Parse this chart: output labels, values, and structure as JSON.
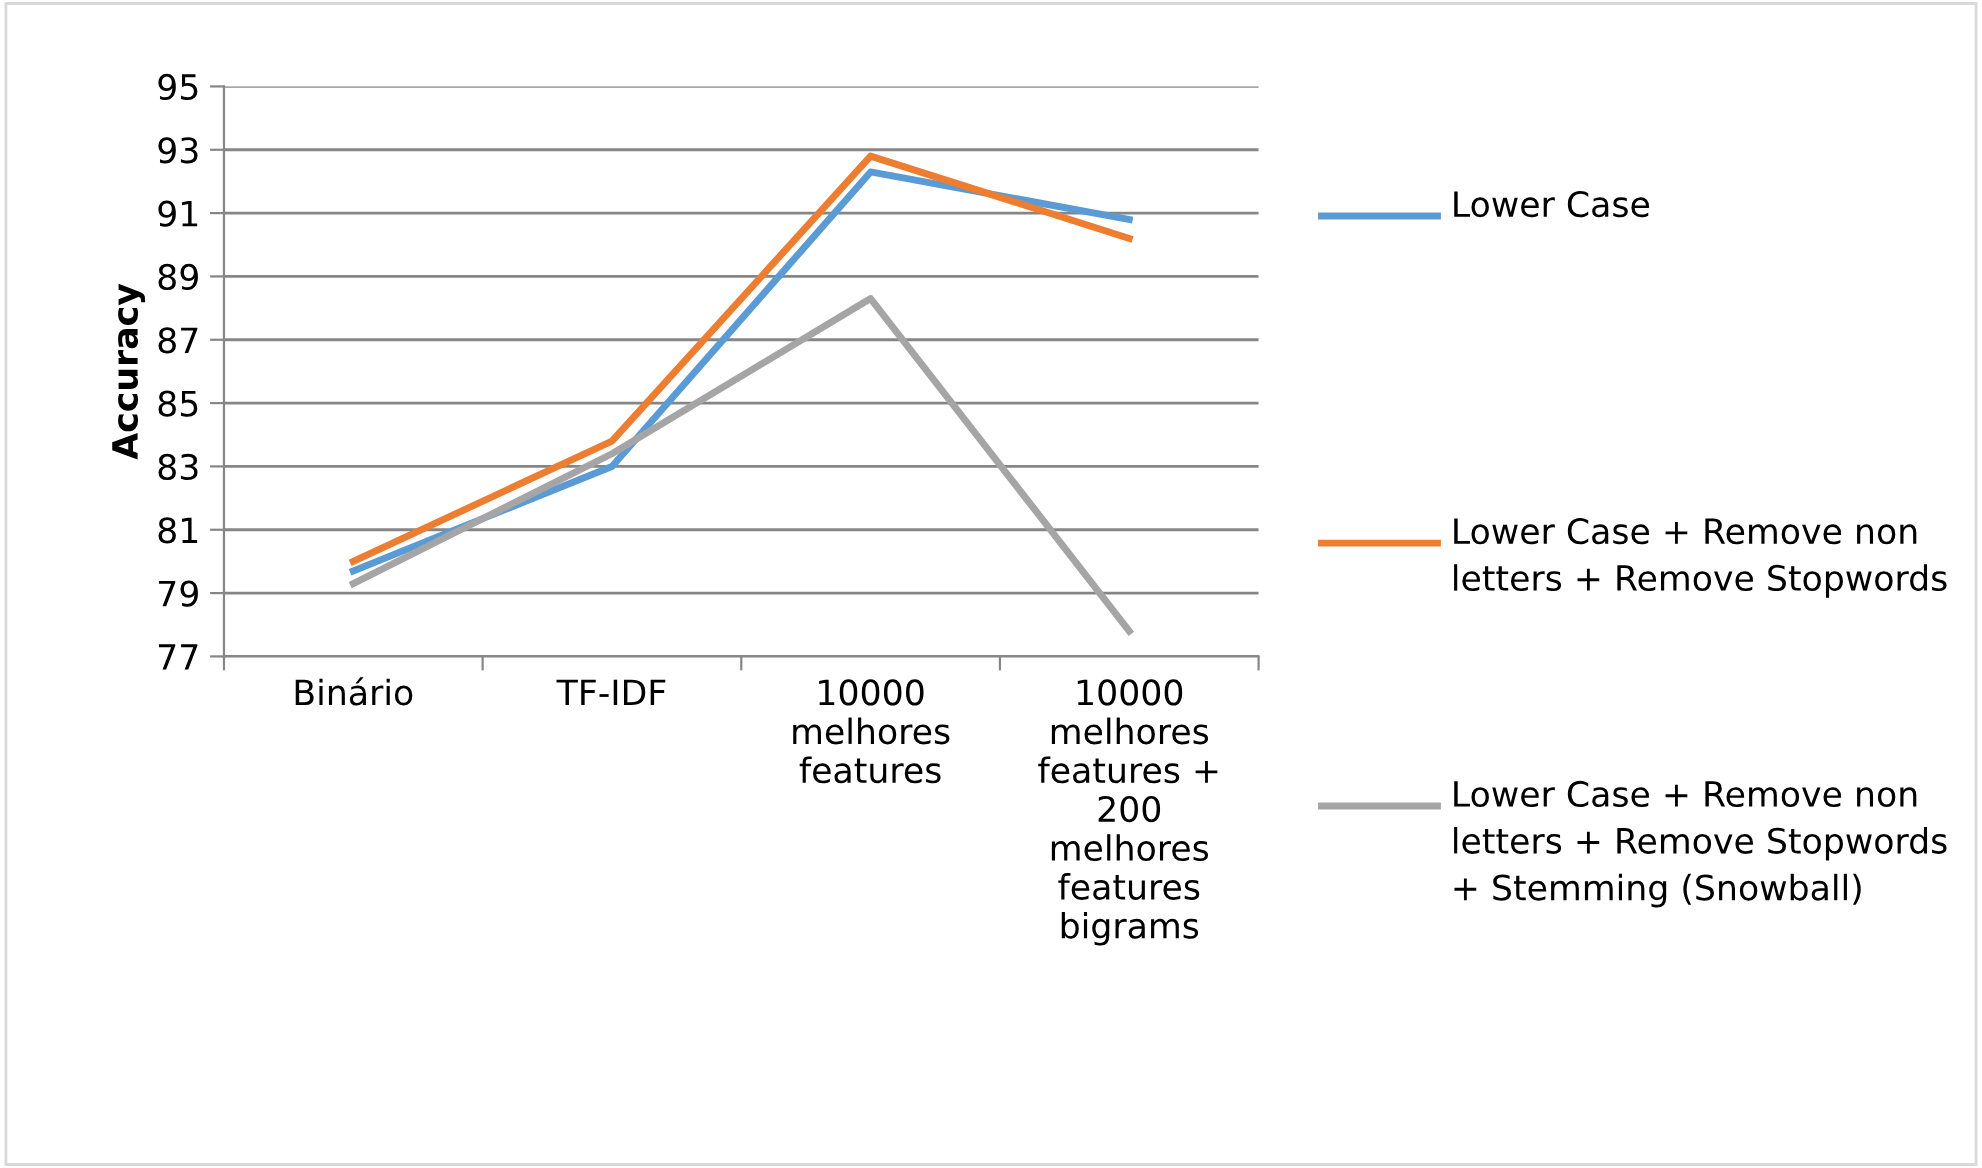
{
  "chart_data": {
    "type": "line",
    "ylabel": "Accuracy",
    "categories": [
      "Binário",
      "TF-IDF",
      "10000\nmelhores\nfeatures",
      "10000\nmelhores\nfeatures +\n200\nmelhores\nfeatures\nbigrams"
    ],
    "series": [
      {
        "name": "Lower Case",
        "color": "#5b9bd5",
        "values": [
          79.7,
          83.0,
          92.3,
          90.8
        ]
      },
      {
        "name": "Lower Case + Remove non letters + Remove Stopwords",
        "color": "#ed7d31",
        "values": [
          80.0,
          83.8,
          92.8,
          90.2
        ]
      },
      {
        "name": "Lower Case + Remove non letters + Remove Stopwords + Stemming (Snowball)",
        "color": "#a5a5a5",
        "values": [
          79.3,
          83.4,
          88.3,
          77.8
        ]
      }
    ],
    "ylim": [
      77,
      95
    ],
    "yticks": [
      77,
      79,
      81,
      83,
      85,
      87,
      89,
      91,
      93,
      95
    ],
    "grid": "y",
    "legend": "right",
    "marker": "none",
    "line_style": "solid"
  }
}
